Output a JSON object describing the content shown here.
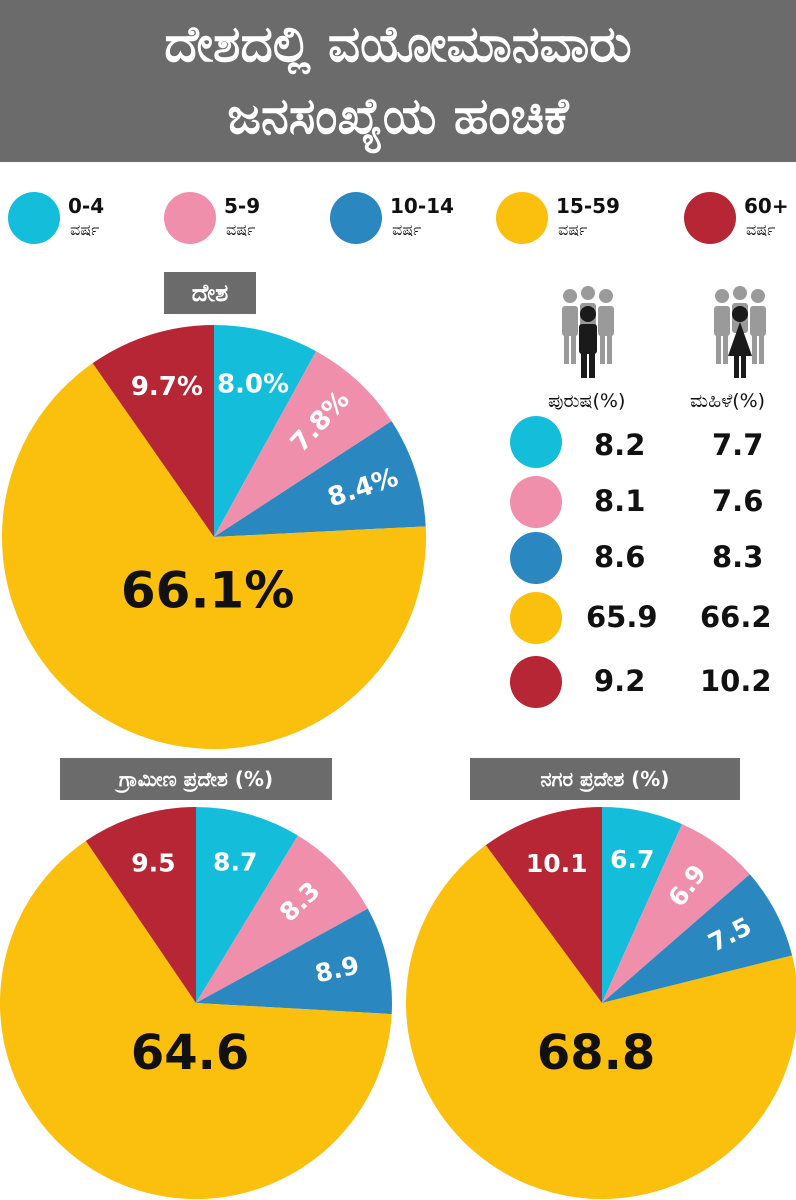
{
  "title": {
    "line1": "ದೇಶದಲ್ಲಿ ವಯೋಮಾನವಾರು",
    "line2": "ಜನಸಂಖ್ಯೆಯ ಹಂಚಿಕೆ"
  },
  "colors": {
    "age_0_4": "#14bedb",
    "age_5_9": "#f08fac",
    "age_10_14": "#2b87c0",
    "age_15_59": "#fbbf0d",
    "age_60_plus": "#b72634",
    "header_bg": "#6b6b6b"
  },
  "legend": [
    {
      "range": "0-4",
      "unit": "ವರ್ಷ",
      "color": "#14bedb"
    },
    {
      "range": "5-9",
      "unit": "ವರ್ಷ",
      "color": "#f08fac"
    },
    {
      "range": "10-14",
      "unit": "ವರ್ಷ",
      "color": "#2b87c0"
    },
    {
      "range": "15-59",
      "unit": "ವರ್ಷ",
      "color": "#fbbf0d"
    },
    {
      "range": "60+",
      "unit": "ವರ್ಷ",
      "color": "#b72634"
    }
  ],
  "chart_data": [
    {
      "type": "pie",
      "title": "ದೇಶ",
      "categories": [
        "0-4",
        "5-9",
        "10-14",
        "15-59",
        "60+"
      ],
      "values": [
        8.0,
        7.8,
        8.4,
        66.1,
        9.7
      ],
      "labels": [
        "8.0%",
        "7.8%",
        "8.4%",
        "66.1%",
        "9.7%"
      ]
    },
    {
      "type": "pie",
      "title": "ಗ್ರಾಮೀಣ ಪ್ರದೇಶ (%)",
      "categories": [
        "0-4",
        "5-9",
        "10-14",
        "15-59",
        "60+"
      ],
      "values": [
        8.7,
        8.3,
        8.9,
        64.6,
        9.5
      ],
      "labels": [
        "8.7",
        "8.3",
        "8.9",
        "64.6",
        "9.5"
      ]
    },
    {
      "type": "pie",
      "title": "ನಗರ ಪ್ರದೇಶ (%)",
      "categories": [
        "0-4",
        "5-9",
        "10-14",
        "15-59",
        "60+"
      ],
      "values": [
        6.7,
        6.9,
        7.5,
        68.8,
        10.1
      ],
      "labels": [
        "6.7",
        "6.9",
        "7.5",
        "68.8",
        "10.1"
      ]
    },
    {
      "type": "table",
      "columns": [
        "ಪುರುಷ(%)",
        "ಮಹಿಳೆ(%)"
      ],
      "categories": [
        "0-4",
        "5-9",
        "10-14",
        "15-59",
        "60+"
      ],
      "series": [
        {
          "name": "ಪುರುಷ(%)",
          "values": [
            "8.2",
            "8.1",
            "8.6",
            "65.9",
            "9.2"
          ]
        },
        {
          "name": "ಮಹಿಳೆ(%)",
          "values": [
            "7.7",
            "7.6",
            "8.3",
            "66.2",
            "10.2"
          ]
        }
      ]
    }
  ]
}
